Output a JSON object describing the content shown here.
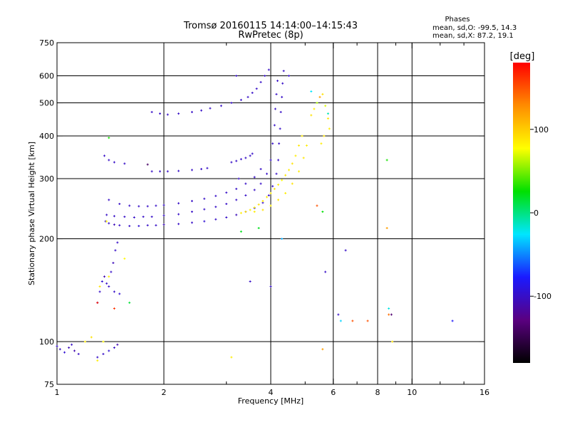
{
  "title": {
    "line1": "Tromsø 20160115  14:14:00–14:15:43",
    "line2": "RwPretec (8p)"
  },
  "phases_box": {
    "heading": "Phases",
    "o_line": "mean, sd,O: -99.5, 14.3",
    "x_line": "mean, sd,X:  87.2, 19.1"
  },
  "colorbar": {
    "unit_label": "[deg]",
    "range": [
      -180,
      180
    ],
    "ticks": [
      {
        "value": 100,
        "label": "100"
      },
      {
        "value": 0,
        "label": "0"
      },
      {
        "value": -100,
        "label": "-100"
      }
    ],
    "gradient_stops": [
      "#000000",
      "#5a0080",
      "#1a1aff",
      "#00e6ff",
      "#00e000",
      "#ffff00",
      "#ff8c00",
      "#ff0000"
    ]
  },
  "chart_data": {
    "type": "scatter",
    "xlabel": "Frequency [MHz]",
    "ylabel": "Stationary phase Virtual Height [km]",
    "x_scale": "log",
    "y_scale": "log",
    "xlim": [
      1,
      16
    ],
    "ylim": [
      75,
      750
    ],
    "x_ticks": [
      {
        "value": 1,
        "label": "1"
      },
      {
        "value": 2,
        "label": "2"
      },
      {
        "value": 4,
        "label": "4"
      },
      {
        "value": 6,
        "label": "6"
      },
      {
        "value": 8,
        "label": "8"
      },
      {
        "value": 10,
        "label": "10"
      },
      {
        "value": 16,
        "label": "16"
      }
    ],
    "x_minor_ticks": [
      3,
      5,
      7,
      9,
      12,
      14
    ],
    "y_ticks": [
      {
        "value": 75,
        "label": "75"
      },
      {
        "value": 100,
        "label": "100"
      },
      {
        "value": 200,
        "label": "200"
      },
      {
        "value": 300,
        "label": "300"
      },
      {
        "value": 400,
        "label": "400"
      },
      {
        "value": 500,
        "label": "500"
      },
      {
        "value": 600,
        "label": "600"
      },
      {
        "value": 750,
        "label": "750"
      }
    ],
    "x_gridlines": [
      2,
      4,
      6,
      8,
      10
    ],
    "y_gridlines": [
      100,
      200,
      300,
      400,
      500,
      600
    ],
    "grid": true,
    "series": [
      {
        "points": [
          [
            1.0,
            97,
            -100
          ],
          [
            1.02,
            95,
            -100
          ],
          [
            1.05,
            93,
            -95
          ],
          [
            1.08,
            96,
            -105
          ],
          [
            1.1,
            98,
            -100
          ],
          [
            1.12,
            94,
            -110
          ],
          [
            1.15,
            92,
            -100
          ],
          [
            1.35,
            92,
            -100
          ],
          [
            1.4,
            94,
            -95
          ],
          [
            1.45,
            96,
            -100
          ],
          [
            1.48,
            98,
            -110
          ],
          [
            1.3,
            90,
            -100
          ],
          [
            1.3,
            130,
            -100
          ],
          [
            1.32,
            140,
            -100
          ],
          [
            1.34,
            150,
            -95
          ],
          [
            1.36,
            155,
            -110
          ],
          [
            1.38,
            148,
            -100
          ],
          [
            1.4,
            145,
            -100
          ],
          [
            1.42,
            160,
            -100
          ],
          [
            1.44,
            170,
            -105
          ],
          [
            1.46,
            185,
            -100
          ],
          [
            1.48,
            195,
            -100
          ],
          [
            1.45,
            140,
            -100
          ],
          [
            1.5,
            138,
            -95
          ],
          [
            1.37,
            225,
            -100
          ],
          [
            1.4,
            222,
            -100
          ],
          [
            1.45,
            220,
            -105
          ],
          [
            1.5,
            219,
            -100
          ],
          [
            1.6,
            218,
            -100
          ],
          [
            1.7,
            218,
            -95
          ],
          [
            1.8,
            219,
            -100
          ],
          [
            1.9,
            219,
            -100
          ],
          [
            2.0,
            220,
            -105
          ],
          [
            2.2,
            221,
            -100
          ],
          [
            2.4,
            223,
            -100
          ],
          [
            2.6,
            225,
            -95
          ],
          [
            2.8,
            228,
            -100
          ],
          [
            3.0,
            231,
            -100
          ],
          [
            3.2,
            235,
            -105
          ],
          [
            3.4,
            240,
            -100
          ],
          [
            3.6,
            246,
            -100
          ],
          [
            3.8,
            255,
            -100
          ],
          [
            3.95,
            268,
            -100
          ],
          [
            4.05,
            285,
            -100
          ],
          [
            4.15,
            310,
            -100
          ],
          [
            4.2,
            340,
            -100
          ],
          [
            4.22,
            380,
            -100
          ],
          [
            4.25,
            420,
            -100
          ],
          [
            4.27,
            470,
            -100
          ],
          [
            4.3,
            520,
            -100
          ],
          [
            4.32,
            570,
            -100
          ],
          [
            4.35,
            620,
            -100
          ],
          [
            1.38,
            235,
            -100
          ],
          [
            1.45,
            233,
            -100
          ],
          [
            1.55,
            232,
            -100
          ],
          [
            1.65,
            231,
            -100
          ],
          [
            1.75,
            232,
            -100
          ],
          [
            1.85,
            232,
            -100
          ],
          [
            2.0,
            234,
            -100
          ],
          [
            2.2,
            236,
            -100
          ],
          [
            2.4,
            240,
            -100
          ],
          [
            2.6,
            244,
            -100
          ],
          [
            2.8,
            248,
            -100
          ],
          [
            3.0,
            253,
            -100
          ],
          [
            3.2,
            260,
            -100
          ],
          [
            3.4,
            268,
            -100
          ],
          [
            3.6,
            278,
            -100
          ],
          [
            3.75,
            290,
            -100
          ],
          [
            3.9,
            310,
            -100
          ],
          [
            4.0,
            340,
            -100
          ],
          [
            4.05,
            380,
            -100
          ],
          [
            4.1,
            430,
            -100
          ],
          [
            4.12,
            480,
            -100
          ],
          [
            4.15,
            530,
            -100
          ],
          [
            4.18,
            580,
            -100
          ],
          [
            1.4,
            260,
            -100
          ],
          [
            1.5,
            253,
            -100
          ],
          [
            1.6,
            250,
            -100
          ],
          [
            1.7,
            249,
            -100
          ],
          [
            1.8,
            249,
            -100
          ],
          [
            1.9,
            250,
            -100
          ],
          [
            2.0,
            251,
            -100
          ],
          [
            2.2,
            254,
            -100
          ],
          [
            2.4,
            258,
            -100
          ],
          [
            2.6,
            262,
            -100
          ],
          [
            2.8,
            267,
            -100
          ],
          [
            3.0,
            273,
            -100
          ],
          [
            3.2,
            280,
            -100
          ],
          [
            3.4,
            290,
            -100
          ],
          [
            3.6,
            303,
            -100
          ],
          [
            3.75,
            320,
            -100
          ],
          [
            1.36,
            350,
            -100
          ],
          [
            1.4,
            340,
            -100
          ],
          [
            1.45,
            335,
            -100
          ],
          [
            1.55,
            332,
            -100
          ],
          [
            1.85,
            315,
            -100
          ],
          [
            1.95,
            315,
            -100
          ],
          [
            2.05,
            315,
            -100
          ],
          [
            2.2,
            316,
            -100
          ],
          [
            2.4,
            318,
            -100
          ],
          [
            2.55,
            320,
            -100
          ],
          [
            2.65,
            322,
            -100
          ],
          [
            3.1,
            335,
            -100
          ],
          [
            3.2,
            338,
            -100
          ],
          [
            3.3,
            342,
            -100
          ],
          [
            3.4,
            345,
            -100
          ],
          [
            3.5,
            350,
            -100
          ],
          [
            3.55,
            355,
            -100
          ],
          [
            1.85,
            470,
            -100
          ],
          [
            1.95,
            465,
            -100
          ],
          [
            2.05,
            462,
            -100
          ],
          [
            2.2,
            465,
            -100
          ],
          [
            2.4,
            470,
            -100
          ],
          [
            2.55,
            475,
            -100
          ],
          [
            2.7,
            482,
            -100
          ],
          [
            2.9,
            490,
            -100
          ],
          [
            3.1,
            500,
            -100
          ],
          [
            3.3,
            510,
            -100
          ],
          [
            3.45,
            520,
            -100
          ],
          [
            3.55,
            535,
            -100
          ],
          [
            3.65,
            550,
            -100
          ],
          [
            3.75,
            575,
            -100
          ],
          [
            3.85,
            600,
            -100
          ],
          [
            3.95,
            625,
            -100
          ],
          [
            3.5,
            150,
            -100
          ],
          [
            3.2,
            600,
            -100
          ],
          [
            4.0,
            145,
            -100
          ],
          [
            6.5,
            185,
            -100
          ],
          [
            4.5,
            600,
            -100
          ],
          [
            5.7,
            160,
            -100
          ],
          [
            6.2,
            120,
            -100
          ],
          [
            3.25,
            300,
            -100
          ],
          [
            1.2,
            100,
            85
          ],
          [
            1.25,
            103,
            90
          ],
          [
            1.35,
            100,
            80
          ],
          [
            1.32,
            145,
            90
          ],
          [
            1.4,
            155,
            85
          ],
          [
            1.55,
            175,
            80
          ],
          [
            1.3,
            88,
            85
          ],
          [
            1.38,
            225,
            80
          ],
          [
            3.3,
            238,
            85
          ],
          [
            3.4,
            240,
            90
          ],
          [
            3.5,
            243,
            85
          ],
          [
            3.6,
            247,
            80
          ],
          [
            3.7,
            252,
            90
          ],
          [
            3.8,
            258,
            85
          ],
          [
            3.9,
            265,
            88
          ],
          [
            4.0,
            272,
            85
          ],
          [
            4.1,
            280,
            90
          ],
          [
            4.2,
            288,
            85
          ],
          [
            4.3,
            297,
            80
          ],
          [
            4.4,
            307,
            88
          ],
          [
            4.5,
            318,
            85
          ],
          [
            4.6,
            332,
            90
          ],
          [
            4.7,
            350,
            85
          ],
          [
            4.8,
            375,
            88
          ],
          [
            4.9,
            400,
            85
          ],
          [
            3.6,
            240,
            85
          ],
          [
            3.8,
            243,
            90
          ],
          [
            4.0,
            250,
            85
          ],
          [
            4.2,
            260,
            88
          ],
          [
            4.4,
            272,
            85
          ],
          [
            4.6,
            290,
            90
          ],
          [
            4.8,
            315,
            85
          ],
          [
            4.95,
            345,
            88
          ],
          [
            5.05,
            375,
            85
          ],
          [
            5.2,
            460,
            90
          ],
          [
            5.3,
            480,
            85
          ],
          [
            5.4,
            500,
            60
          ],
          [
            5.5,
            520,
            120
          ],
          [
            5.6,
            530,
            90
          ],
          [
            5.7,
            490,
            70
          ],
          [
            5.8,
            450,
            88
          ],
          [
            5.85,
            420,
            85
          ],
          [
            5.65,
            400,
            90
          ],
          [
            5.55,
            380,
            85
          ],
          [
            3.1,
            90,
            85
          ],
          [
            5.6,
            95,
            120
          ],
          [
            8.5,
            215,
            120
          ],
          [
            8.8,
            100,
            90
          ],
          [
            5.4,
            250,
            150
          ],
          [
            1.45,
            125,
            160
          ],
          [
            1.3,
            130,
            170
          ],
          [
            7.5,
            115,
            150
          ],
          [
            8.6,
            120,
            140
          ],
          [
            6.8,
            115,
            150
          ],
          [
            3.3,
            210,
            20
          ],
          [
            3.7,
            215,
            20
          ],
          [
            8.5,
            340,
            30
          ],
          [
            1.6,
            130,
            15
          ],
          [
            1.4,
            395,
            30
          ],
          [
            5.6,
            240,
            25
          ],
          [
            6.3,
            115,
            -30
          ],
          [
            8.6,
            125,
            -20
          ],
          [
            5.8,
            465,
            -10
          ],
          [
            5.2,
            540,
            -25
          ],
          [
            13.0,
            115,
            -80
          ],
          [
            8.75,
            120,
            -135
          ],
          [
            4.3,
            200,
            -40
          ],
          [
            1.8,
            330,
            -140
          ]
        ]
      }
    ]
  }
}
